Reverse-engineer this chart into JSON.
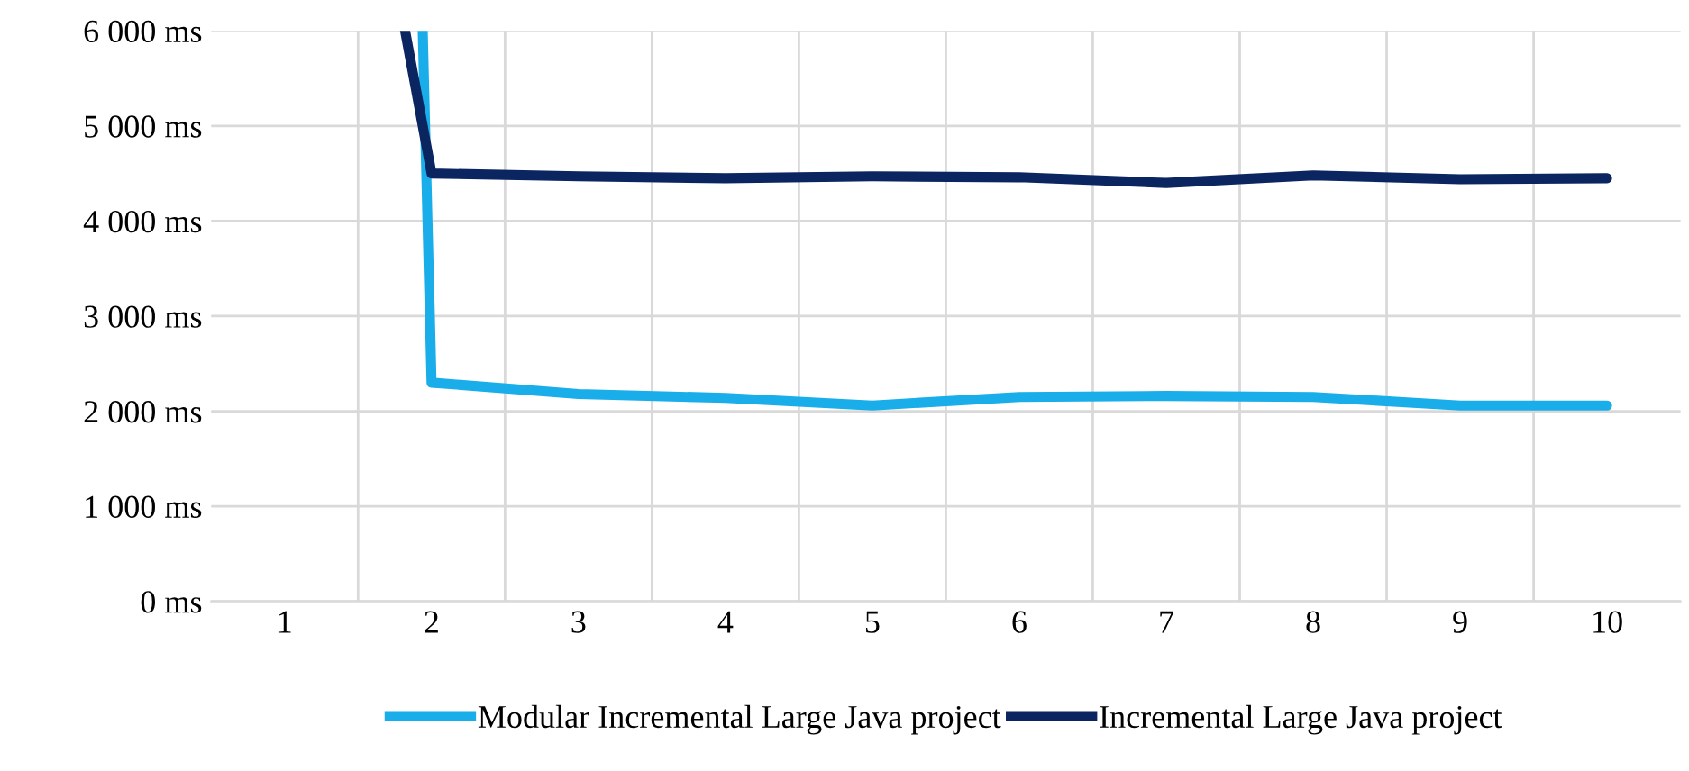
{
  "chart_data": {
    "type": "line",
    "series": [
      {
        "name": "Modular Incremental Large Java project",
        "color": "#19aeea",
        "x": [
          1.94,
          2,
          3,
          4,
          5,
          6,
          7,
          8,
          9,
          10
        ],
        "values": [
          6000,
          2300,
          2180,
          2140,
          2060,
          2150,
          2160,
          2150,
          2060,
          2060
        ]
      },
      {
        "name": "Incremental Large Java project",
        "color": "#0b2560",
        "x": [
          1.82,
          2,
          3,
          4,
          5,
          6,
          7,
          8,
          9,
          10
        ],
        "values": [
          6000,
          4500,
          4470,
          4450,
          4470,
          4460,
          4400,
          4480,
          4440,
          4450
        ]
      }
    ],
    "xlim": [
      0.5,
      10.5
    ],
    "xticks": [
      1,
      2,
      3,
      4,
      5,
      6,
      7,
      8,
      9,
      10
    ],
    "ylim": [
      0,
      6000
    ],
    "yticks": [
      {
        "value": 0,
        "label": "0 ms"
      },
      {
        "value": 1000,
        "label": "1 000 ms"
      },
      {
        "value": 2000,
        "label": "2 000 ms"
      },
      {
        "value": 3000,
        "label": "3 000 ms"
      },
      {
        "value": 4000,
        "label": "4 000 ms"
      },
      {
        "value": 5000,
        "label": "5 000 ms"
      },
      {
        "value": 6000,
        "label": "6 000 ms"
      }
    ],
    "grid": true,
    "legend": "bottom",
    "marker": "none",
    "line_style": "solid"
  }
}
